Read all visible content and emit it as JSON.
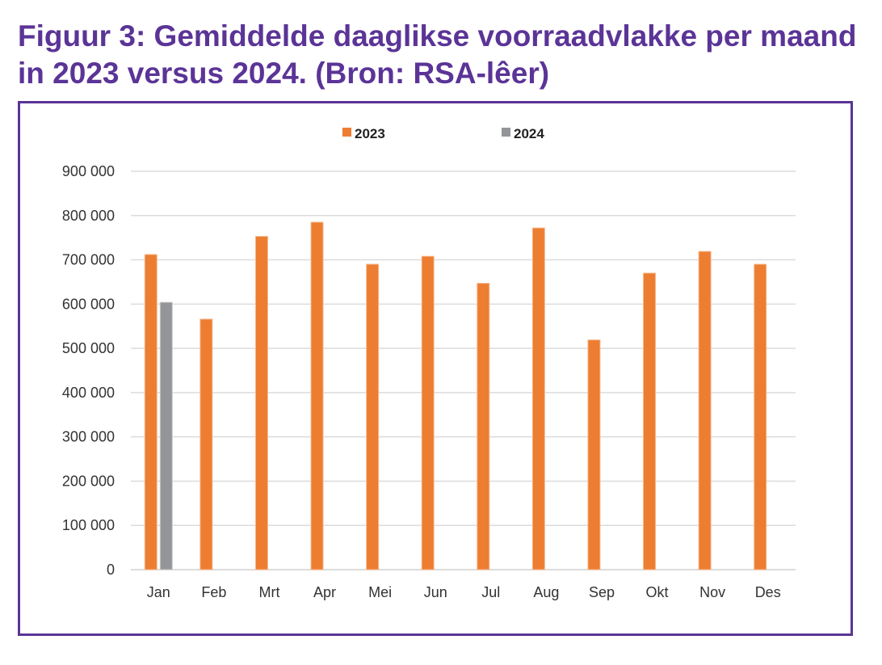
{
  "figure_title": "Figuur 3: Gemiddelde daaglikse voorraadvlakke per maand in 2023 versus 2024. (Bron: RSA-lêer)",
  "chart_data": {
    "type": "bar",
    "title": "Figuur 3: Gemiddelde daaglikse voorraadvlakke per maand in 2023 versus 2024. (Bron: RSA-lêer)",
    "xlabel": "",
    "ylabel": "",
    "ylim": [
      0,
      900000
    ],
    "yticks": [
      0,
      100000,
      200000,
      300000,
      400000,
      500000,
      600000,
      700000,
      800000,
      900000
    ],
    "ytick_labels": [
      "0",
      "100 000",
      "200 000",
      "300 000",
      "400 000",
      "500 000",
      "600 000",
      "700 000",
      "800 000",
      "900 000"
    ],
    "grid": true,
    "legend_position": "top-center",
    "categories": [
      "Jan",
      "Feb",
      "Mrt",
      "Apr",
      "Mei",
      "Jun",
      "Jul",
      "Aug",
      "Sep",
      "Okt",
      "Nov",
      "Des"
    ],
    "series": [
      {
        "name": "2023",
        "color": "#ed7d31",
        "values": [
          712000,
          566000,
          753000,
          785000,
          690000,
          708000,
          647000,
          772000,
          519000,
          670000,
          719000,
          690000
        ]
      },
      {
        "name": "2024",
        "color": "#939598",
        "values": [
          604000,
          null,
          null,
          null,
          null,
          null,
          null,
          null,
          null,
          null,
          null,
          null
        ]
      }
    ]
  }
}
